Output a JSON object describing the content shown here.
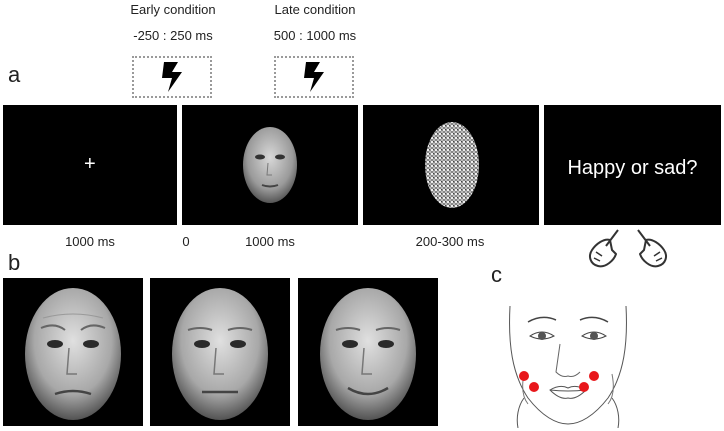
{
  "panel_a": {
    "letter": "a",
    "early_condition": {
      "title": "Early condition",
      "range": "-250 : 250 ms"
    },
    "late_condition": {
      "title": "Late condition",
      "range": "500 : 1000 ms"
    },
    "fixation": "+",
    "question": "Happy or sad?",
    "timings": {
      "fixation": "1000 ms",
      "onset": "0",
      "face": "1000 ms",
      "mask": "200-300 ms"
    }
  },
  "panel_b": {
    "letter": "b"
  },
  "panel_c": {
    "letter": "c"
  },
  "colors": {
    "frame_bg": "#000000",
    "electrode": "#e8171b",
    "dash_border": "#9a9a9a"
  },
  "icons": [
    "lightning-bolt-icon",
    "left-hand-button-icon",
    "right-hand-button-icon"
  ]
}
